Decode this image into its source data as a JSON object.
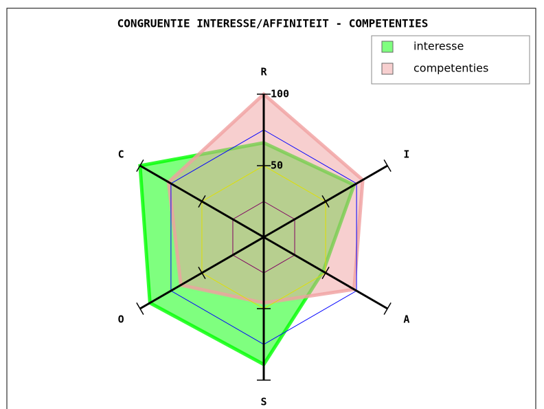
{
  "chart_data": {
    "type": "radar",
    "title": "CONGRUENTIE INTERESSE/AFFINITEIT - COMPETENTIES",
    "categories": [
      "R",
      "I",
      "A",
      "S",
      "O",
      "C"
    ],
    "series": [
      {
        "name": "interesse",
        "color": "#00ff00",
        "values": [
          66,
          73,
          48,
          89,
          92,
          100
        ]
      },
      {
        "name": "competenties",
        "color": "#f0a0a0",
        "values": [
          100,
          80,
          73,
          46,
          67,
          77
        ]
      }
    ],
    "rlim": [
      0,
      100
    ],
    "rticks": [
      50,
      100
    ],
    "rings": [
      25,
      50,
      75
    ],
    "ring_colors": [
      "#800060",
      "#e0e000",
      "#0000ff"
    ],
    "legend": "upper right"
  }
}
